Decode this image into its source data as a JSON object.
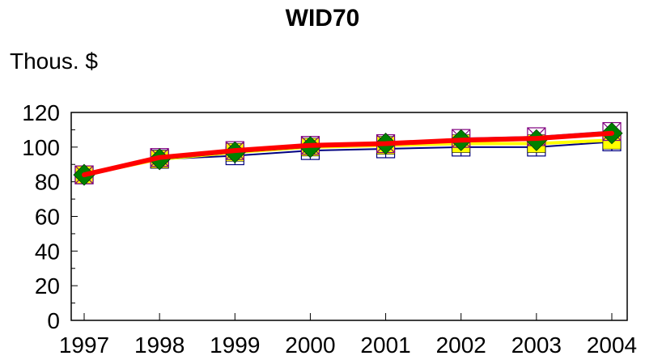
{
  "chart_data": {
    "type": "line",
    "title": "WID70",
    "ylabel": "Thous. $",
    "xlabel": "",
    "categories": [
      "1997",
      "1998",
      "1999",
      "2000",
      "2001",
      "2002",
      "2003",
      "2004"
    ],
    "ylim": [
      0,
      120
    ],
    "yticks": [
      "0",
      "20",
      "40",
      "60",
      "80",
      "100",
      "120"
    ],
    "grid": false,
    "legend": "none",
    "series": [
      {
        "color": "#000080",
        "marker": "square-cross",
        "values": [
          84,
          93,
          95,
          98,
          99,
          100,
          100,
          103
        ]
      },
      {
        "color": "#ffff00",
        "marker": "square",
        "values": [
          84,
          93,
          97,
          100,
          101,
          102,
          102,
          104
        ]
      },
      {
        "color": "#800080",
        "marker": "square-x",
        "values": [
          84,
          94,
          98,
          101,
          102,
          105,
          106,
          109
        ]
      },
      {
        "color": "#008000",
        "marker": "diamond",
        "values": [
          84,
          93,
          97,
          100,
          102,
          104,
          104,
          108
        ]
      },
      {
        "color": "#ff0000",
        "marker": "none",
        "values": [
          84,
          94,
          98,
          101,
          102,
          104,
          105,
          108
        ]
      }
    ]
  }
}
